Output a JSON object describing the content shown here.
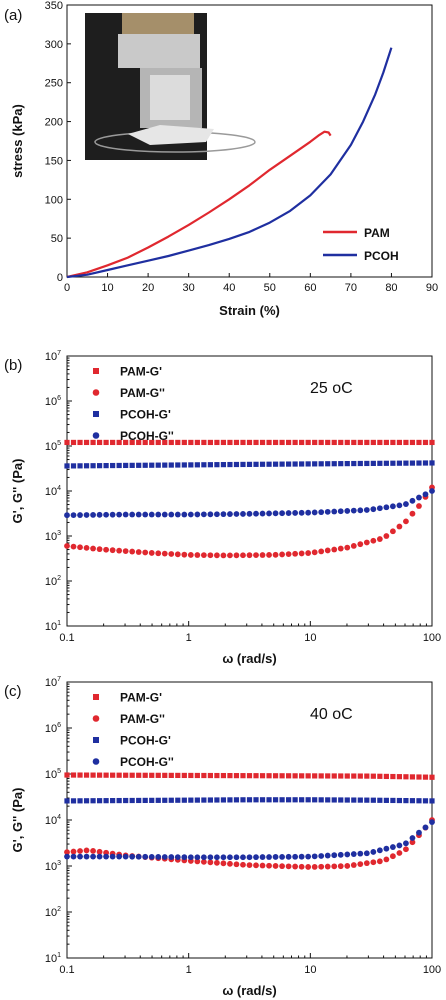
{
  "colors": {
    "red": "#e0282f",
    "blue": "#1f2fa0",
    "axis": "#111111"
  },
  "panels": {
    "a": {
      "label": "(a)"
    },
    "b": {
      "label": "(b)",
      "temperature": "25",
      "temp_unit": "oC"
    },
    "c": {
      "label": "(c)",
      "temperature": "40",
      "temp_unit": "oC"
    }
  },
  "chart_data": [
    {
      "type": "line",
      "panel": "(a)",
      "title": "",
      "xlabel": "Strain (%)",
      "ylabel": "stress (kPa)",
      "xlim": [
        0,
        90
      ],
      "ylim": [
        0,
        350
      ],
      "xticks": [
        "0",
        "10",
        "20",
        "30",
        "40",
        "50",
        "60",
        "70",
        "80",
        "90"
      ],
      "yticks": [
        "0",
        "50",
        "100",
        "150",
        "200",
        "250",
        "300",
        "350"
      ],
      "legend_position": "bottom-right",
      "inset": "photograph of compression test fixture (top-left)",
      "series": [
        {
          "name": "PAM",
          "color": "#e0282f",
          "x": [
            0,
            5,
            10,
            15,
            20,
            25,
            30,
            35,
            40,
            45,
            50,
            55,
            60,
            62,
            63.5,
            64.5,
            65
          ],
          "y": [
            0,
            6,
            15,
            25,
            38,
            52,
            67,
            83,
            100,
            118,
            138,
            156,
            174,
            182,
            187,
            186,
            182
          ]
        },
        {
          "name": "PCOH",
          "color": "#1f2fa0",
          "x": [
            0,
            5,
            10,
            15,
            20,
            25,
            30,
            35,
            40,
            45,
            50,
            55,
            60,
            65,
            70,
            73,
            76,
            78,
            80
          ],
          "y": [
            0,
            3,
            9,
            15,
            21,
            27,
            34,
            41,
            49,
            58,
            70,
            85,
            105,
            132,
            170,
            200,
            235,
            263,
            295
          ]
        }
      ]
    },
    {
      "type": "scatter",
      "panel": "(b)",
      "title": "",
      "xlabel": "ω (rad/s)",
      "ylabel": "G', G'' (Pa)",
      "xscale": "log",
      "yscale": "log",
      "xlim": [
        0.1,
        100
      ],
      "ylim": [
        10,
        10000000
      ],
      "xticks": [
        "0.1",
        "1",
        "10",
        "100"
      ],
      "yticks": [
        "10^1",
        "10^2",
        "10^3",
        "10^4",
        "10^5",
        "10^6",
        "10^7"
      ],
      "legend_position": "top-left",
      "annotation": "25 oC",
      "series": [
        {
          "name": "PAM-G'",
          "color": "#e0282f",
          "x": [
            0.1,
            0.3,
            1,
            3,
            10,
            30,
            100
          ],
          "y": [
            120000,
            120000,
            120000,
            120000,
            120000,
            120000,
            120000
          ]
        },
        {
          "name": "PAM-G''",
          "color": "#e0282f",
          "x": [
            0.1,
            0.2,
            0.5,
            1,
            2,
            5,
            10,
            20,
            40,
            60,
            80,
            100
          ],
          "y": [
            600,
            500,
            420,
            380,
            370,
            380,
            420,
            550,
            900,
            2000,
            5000,
            12000
          ]
        },
        {
          "name": "PCOH-G'",
          "color": "#1f2fa0",
          "x": [
            0.1,
            0.3,
            1,
            3,
            10,
            30,
            100
          ],
          "y": [
            36000,
            37000,
            38000,
            39000,
            40000,
            41000,
            42000
          ]
        },
        {
          "name": "PCOH-G''",
          "color": "#1f2fa0",
          "x": [
            0.1,
            0.3,
            1,
            3,
            10,
            30,
            60,
            100
          ],
          "y": [
            2900,
            3000,
            3000,
            3100,
            3300,
            3800,
            5000,
            10000
          ]
        }
      ]
    },
    {
      "type": "scatter",
      "panel": "(c)",
      "title": "",
      "xlabel": "ω (rad/s)",
      "ylabel": "G', G'' (Pa)",
      "xscale": "log",
      "yscale": "log",
      "xlim": [
        0.1,
        100
      ],
      "ylim": [
        10,
        10000000
      ],
      "xticks": [
        "0.1",
        "1",
        "10",
        "100"
      ],
      "yticks": [
        "10^1",
        "10^2",
        "10^3",
        "10^4",
        "10^5",
        "10^6",
        "10^7"
      ],
      "legend_position": "top-left",
      "annotation": "40 oC",
      "series": [
        {
          "name": "PAM-G'",
          "color": "#e0282f",
          "x": [
            0.1,
            0.3,
            1,
            3,
            10,
            30,
            100
          ],
          "y": [
            95000,
            94000,
            93000,
            92000,
            91000,
            90000,
            85000
          ]
        },
        {
          "name": "PAM-G''",
          "color": "#e0282f",
          "x": [
            0.1,
            0.15,
            0.3,
            1,
            3,
            10,
            20,
            40,
            60,
            80,
            100
          ],
          "y": [
            2000,
            2200,
            1700,
            1300,
            1050,
            950,
            1000,
            1300,
            2200,
            5000,
            10000
          ]
        },
        {
          "name": "PCOH-G'",
          "color": "#1f2fa0",
          "x": [
            0.1,
            0.3,
            1,
            3,
            10,
            30,
            100
          ],
          "y": [
            26000,
            26500,
            27000,
            27500,
            27500,
            27000,
            26000
          ]
        },
        {
          "name": "PCOH-G''",
          "color": "#1f2fa0",
          "x": [
            0.1,
            0.3,
            1,
            3,
            10,
            30,
            60,
            100
          ],
          "y": [
            1600,
            1600,
            1550,
            1550,
            1600,
            1900,
            3000,
            9000
          ]
        }
      ]
    }
  ]
}
